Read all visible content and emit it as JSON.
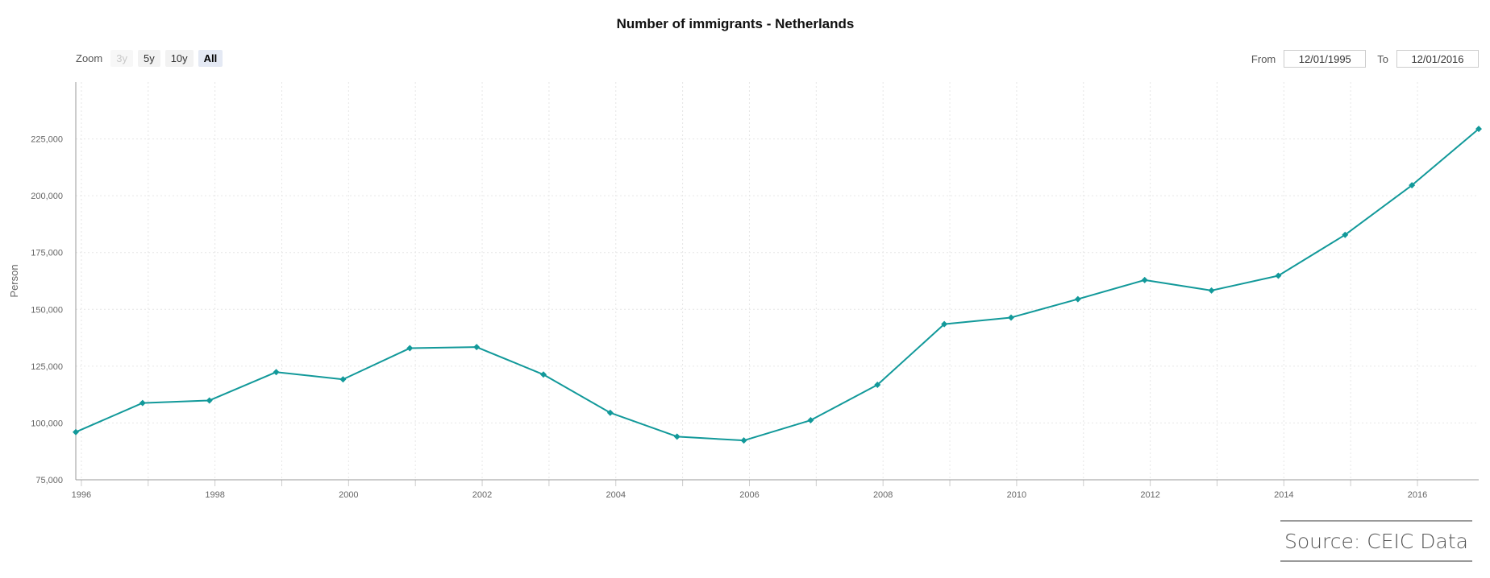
{
  "title": "Number of immigrants - Netherlands",
  "zoom": {
    "label": "Zoom",
    "buttons": [
      {
        "label": "3y",
        "state": "disabled"
      },
      {
        "label": "5y",
        "state": "normal"
      },
      {
        "label": "10y",
        "state": "normal"
      },
      {
        "label": "All",
        "state": "active"
      }
    ]
  },
  "range": {
    "from_label": "From",
    "from_value": "12/01/1995",
    "to_label": "To",
    "to_value": "12/01/2016"
  },
  "source": "Source: CEIC Data",
  "colors": {
    "line": "#12999a",
    "grid": "#e6e6e6",
    "axis": "#999999"
  },
  "chart_data": {
    "type": "line",
    "title": "Number of immigrants - Netherlands",
    "xlabel": "",
    "ylabel": "Person",
    "x": [
      "1995-12",
      "1996-12",
      "1997-12",
      "1998-12",
      "1999-12",
      "2000-12",
      "2001-12",
      "2002-12",
      "2003-12",
      "2004-12",
      "2005-12",
      "2006-12",
      "2007-12",
      "2008-12",
      "2009-12",
      "2010-12",
      "2011-12",
      "2012-12",
      "2013-12",
      "2014-12",
      "2015-12",
      "2016-12"
    ],
    "series": [
      {
        "values": [
          96000,
          108800,
          109900,
          122400,
          119200,
          132900,
          133400,
          121300,
          104500,
          94000,
          92300,
          101200,
          116800,
          143500,
          146400,
          154500,
          162900,
          158300,
          164800,
          182800,
          204600,
          229400
        ]
      }
    ],
    "ylim": [
      75000,
      250000
    ],
    "yticks": [
      75000,
      100000,
      125000,
      150000,
      175000,
      200000,
      225000
    ],
    "ytick_labels": [
      "75,000",
      "100,000",
      "125,000",
      "150,000",
      "175,000",
      "200,000",
      "225,000"
    ],
    "xticks": [
      "1996",
      "1998",
      "2000",
      "2002",
      "2004",
      "2006",
      "2008",
      "2010",
      "2012",
      "2014",
      "2016"
    ],
    "grid": true,
    "legend": "none"
  }
}
